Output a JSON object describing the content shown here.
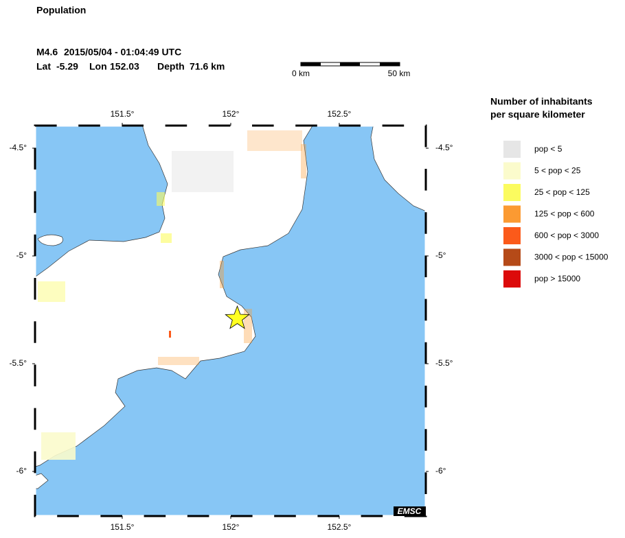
{
  "title": "Population",
  "event": {
    "magnitude": "M4.6",
    "time": "2015/05/04 - 01:04:49 UTC",
    "lat_label": "Lat",
    "lat": -5.29,
    "lon_label": "Lon",
    "lon": 152.03,
    "depth_label": "Depth",
    "depth": "71.6 km"
  },
  "scale_bar": {
    "start": "0 km",
    "end": "50 km"
  },
  "map": {
    "xlim": [
      151.098,
      152.899
    ],
    "ylim": [
      -6.207,
      -4.395
    ],
    "xticks": [
      {
        "value": 151.5,
        "label": "151.5°"
      },
      {
        "value": 152,
        "label": "152°"
      },
      {
        "value": 152.5,
        "label": "152.5°"
      }
    ],
    "yticks": [
      {
        "value": -4.5,
        "label": "-4.5°"
      },
      {
        "value": -5,
        "label": "-5°"
      },
      {
        "value": -5.5,
        "label": "-5.5°"
      },
      {
        "value": -6,
        "label": "-6°"
      }
    ],
    "sea_color": "#87c6f5",
    "land_color": "#ffffff",
    "marker_color": "#ffff22"
  },
  "legend": {
    "title": [
      "Number of inhabitants",
      "per square kilometer"
    ],
    "items": [
      {
        "color": "#e6e6e6",
        "label": "pop < 5"
      },
      {
        "color": "#fbfbcc",
        "label": "5 < pop < 25"
      },
      {
        "color": "#fbfb5f",
        "label": "25 < pop < 125"
      },
      {
        "color": "#fb9a32",
        "label": "125 < pop < 600"
      },
      {
        "color": "#fb5a1a",
        "label": "600 < pop < 3000"
      },
      {
        "color": "#b54a18",
        "label": "3000 < pop < 15000"
      },
      {
        "color": "#dc0a0a",
        "label": "pop > 15000"
      }
    ]
  },
  "credit": "EMSC"
}
